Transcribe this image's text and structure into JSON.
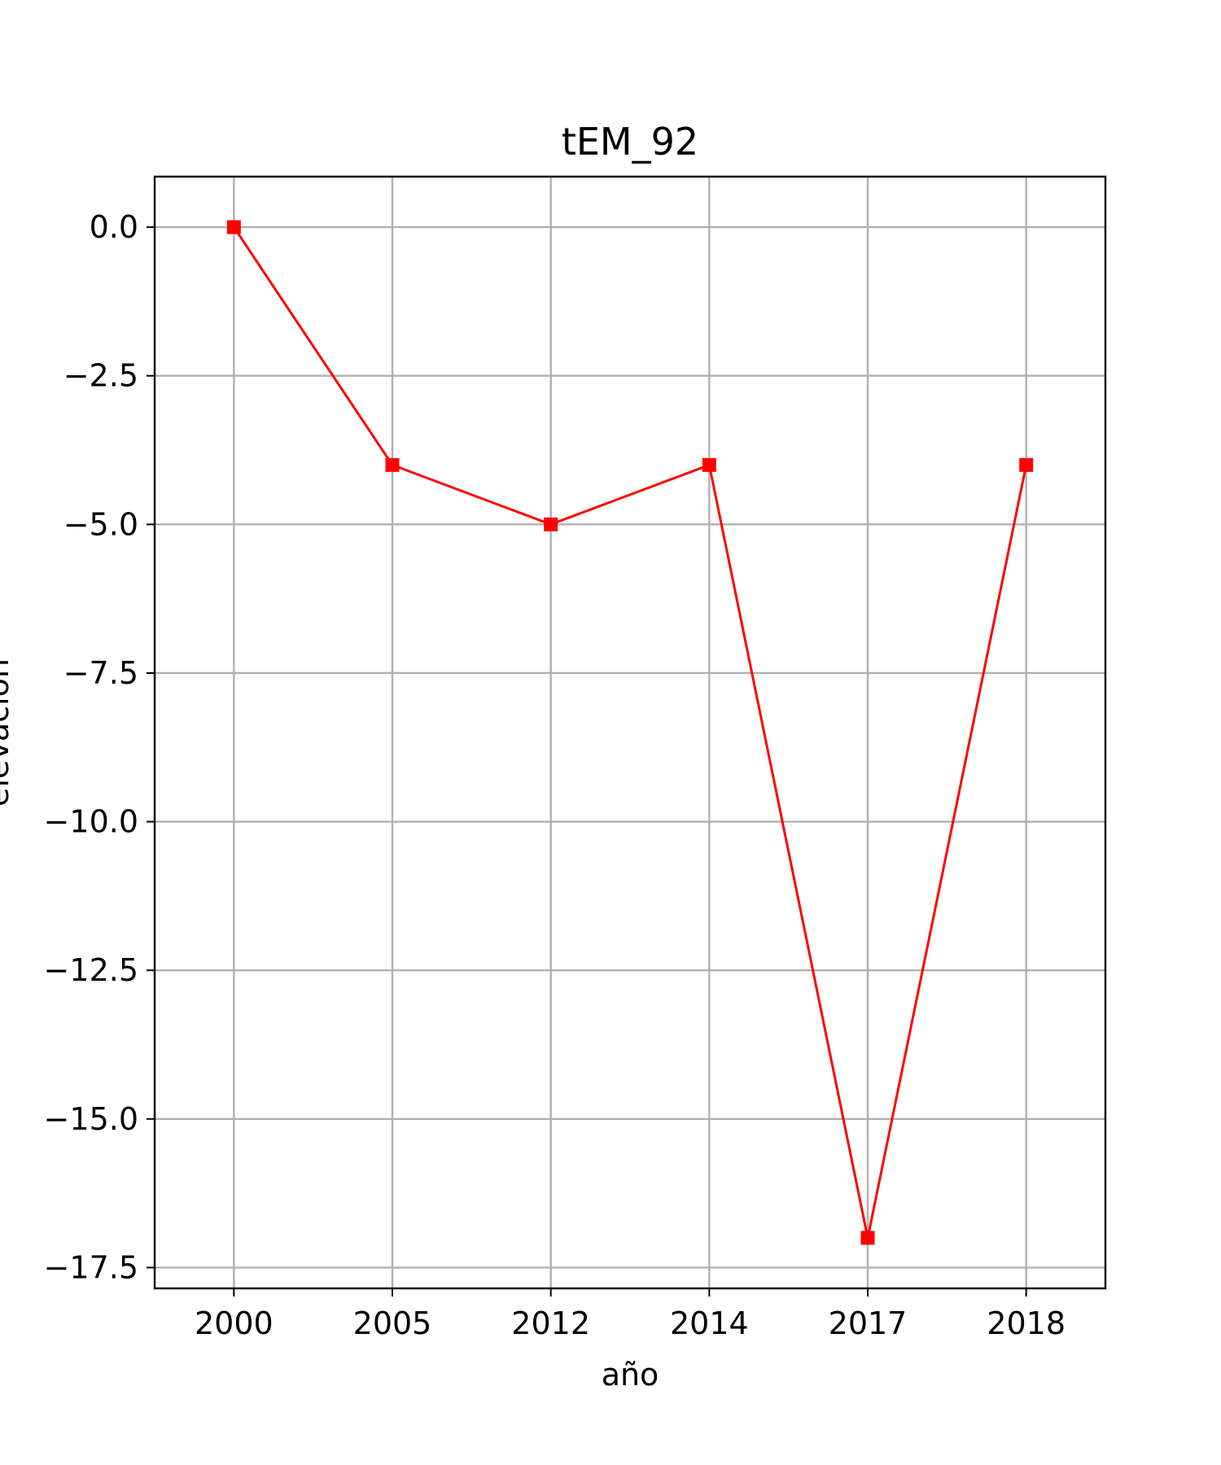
{
  "chart_data": {
    "type": "line",
    "title": "tEM_92",
    "xlabel": "año",
    "ylabel": "elevación",
    "categories": [
      "2000",
      "2005",
      "2012",
      "2014",
      "2017",
      "2018"
    ],
    "series": [
      {
        "values": [
          0,
          -4,
          -5,
          -4,
          -17,
          -4
        ],
        "color": "#ff0000",
        "marker": "square"
      }
    ],
    "ylim": [
      -17.85,
      0.85
    ],
    "yticks": [
      0.0,
      -2.5,
      -5.0,
      -7.5,
      -10.0,
      -12.5,
      -15.0,
      -17.5
    ],
    "ytick_labels": [
      "0.0",
      "−2.5",
      "−5.0",
      "−7.5",
      "−10.0",
      "−12.5",
      "−15.0",
      "−17.5"
    ],
    "grid": true,
    "colors": {
      "line": "#ff0000",
      "grid": "#b0b0b0",
      "axes": "#000000"
    }
  }
}
